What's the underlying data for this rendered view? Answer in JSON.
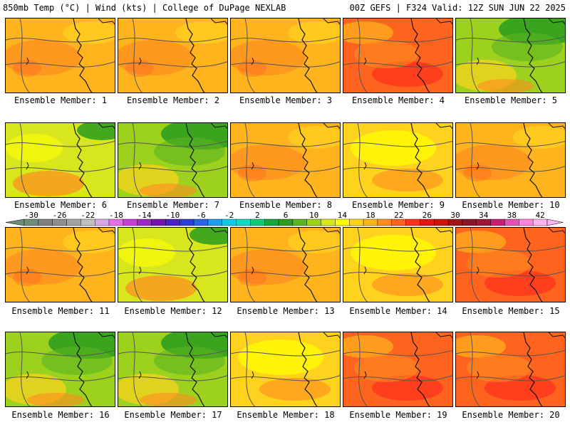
{
  "header": {
    "left_title": "850mb Temp (°C) | Wind (kts) | College of DuPage NEXLAB",
    "right_title": "00Z GEFS | F324 Valid: 12Z SUN JUN 22 2025"
  },
  "members": [
    {
      "label": "Ensemble Member: 1",
      "theme": "warm"
    },
    {
      "label": "Ensemble Member: 2",
      "theme": "warm"
    },
    {
      "label": "Ensemble Member: 3",
      "theme": "warm"
    },
    {
      "label": "Ensemble Member: 4",
      "theme": "hot"
    },
    {
      "label": "Ensemble Member: 5",
      "theme": "cool"
    },
    {
      "label": "Ensemble Member: 6",
      "theme": "mixed"
    },
    {
      "label": "Ensemble Member: 7",
      "theme": "cool"
    },
    {
      "label": "Ensemble Member: 8",
      "theme": "warm"
    },
    {
      "label": "Ensemble Member: 9",
      "theme": "mild"
    },
    {
      "label": "Ensemble Member: 10",
      "theme": "warm"
    },
    {
      "label": "Ensemble Member: 11",
      "theme": "warm"
    },
    {
      "label": "Ensemble Member: 12",
      "theme": "mixed"
    },
    {
      "label": "Ensemble Member: 13",
      "theme": "warm"
    },
    {
      "label": "Ensemble Member: 14",
      "theme": "mild"
    },
    {
      "label": "Ensemble Member: 15",
      "theme": "hot"
    },
    {
      "label": "Ensemble Member: 16",
      "theme": "cool"
    },
    {
      "label": "Ensemble Member: 17",
      "theme": "cool"
    },
    {
      "label": "Ensemble Member: 18",
      "theme": "mild"
    },
    {
      "label": "Ensemble Member: 19",
      "theme": "hot"
    },
    {
      "label": "Ensemble Member: 20",
      "theme": "hot"
    }
  ],
  "colorbar": {
    "tick_labels": [
      "-30",
      "-26",
      "-22",
      "-18",
      "-14",
      "-10",
      "-6",
      "-2",
      "2",
      "6",
      "10",
      "14",
      "18",
      "22",
      "26",
      "30",
      "34",
      "38",
      "42"
    ],
    "colors": [
      "#6d8c7a",
      "#7f7f7f",
      "#8f8f8f",
      "#a3a3a3",
      "#c0c0c0",
      "#d6a8e8",
      "#e86de8",
      "#c83cd8",
      "#9c28c8",
      "#7414b0",
      "#4b1ec8",
      "#2e3cd8",
      "#2864e8",
      "#1e9cf0",
      "#14c8e8",
      "#14d8c0",
      "#14c878",
      "#14a83c",
      "#2a9c1e",
      "#5cb41e",
      "#9cd21e",
      "#d8e61e",
      "#ffff00",
      "#ffd21e",
      "#ffb41e",
      "#ff8c1e",
      "#ff641e",
      "#ff321e",
      "#e61414",
      "#c8140a",
      "#a01414",
      "#8c1428",
      "#a0143c",
      "#c81e78",
      "#e650b4",
      "#ff82dc",
      "#ffb4f0"
    ],
    "theme_colors": {
      "hot": "#ff641e",
      "warm": "#ffb41e",
      "mild": "#ffd21e",
      "cool": "#9cd21e",
      "mixed": "#d8e61e"
    }
  }
}
